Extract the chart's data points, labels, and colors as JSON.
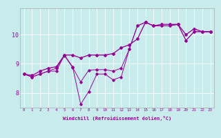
{
  "background_color": "#c8ecec",
  "line_color": "#990099",
  "grid_color": "#ffffff",
  "spine_color": "#aaaaaa",
  "xlim": [
    -0.5,
    23.5
  ],
  "ylim": [
    7.5,
    10.9
  ],
  "xticks": [
    0,
    1,
    2,
    3,
    4,
    5,
    6,
    7,
    8,
    9,
    10,
    11,
    12,
    13,
    14,
    15,
    16,
    17,
    18,
    19,
    20,
    21,
    22,
    23
  ],
  "yticks": [
    8,
    9,
    10
  ],
  "xlabel": "Windchill (Refroidissement éolien,°C)",
  "series": [
    [
      8.65,
      8.55,
      8.65,
      8.75,
      8.75,
      9.3,
      8.9,
      7.62,
      8.05,
      8.65,
      8.65,
      8.45,
      8.55,
      9.5,
      10.3,
      10.42,
      10.3,
      10.35,
      10.35,
      10.35,
      9.8,
      10.1,
      10.1,
      10.1
    ],
    [
      8.65,
      8.55,
      8.65,
      8.75,
      8.85,
      9.28,
      8.88,
      8.38,
      8.78,
      8.8,
      8.8,
      8.75,
      8.85,
      9.5,
      10.3,
      10.42,
      10.3,
      10.35,
      10.35,
      10.35,
      9.8,
      10.1,
      10.1,
      10.1
    ],
    [
      8.65,
      8.6,
      8.75,
      8.85,
      8.9,
      9.3,
      9.3,
      9.2,
      9.3,
      9.3,
      9.3,
      9.35,
      9.55,
      9.65,
      9.85,
      10.42,
      10.3,
      10.3,
      10.3,
      10.35,
      10.0,
      10.2,
      10.1,
      10.1
    ],
    [
      8.65,
      8.6,
      8.75,
      8.85,
      8.9,
      9.3,
      9.3,
      9.2,
      9.3,
      9.3,
      9.3,
      9.35,
      9.55,
      9.65,
      9.85,
      10.42,
      10.3,
      10.3,
      10.3,
      10.35,
      10.0,
      10.2,
      10.1,
      10.1
    ]
  ]
}
